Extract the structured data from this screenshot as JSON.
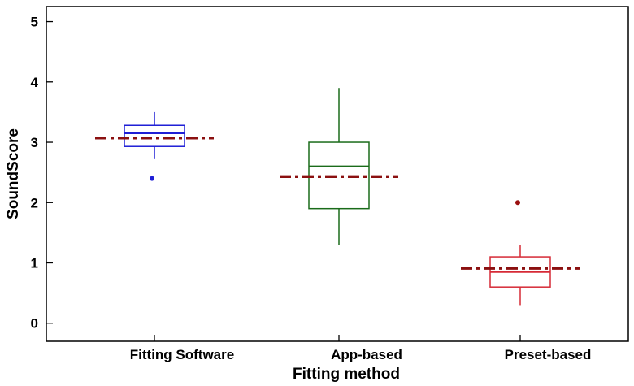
{
  "chart_data": {
    "type": "box",
    "xlabel": "Fitting method",
    "ylabel": "SoundScore",
    "ylim": [
      -0.3,
      5.25
    ],
    "yticks": [
      0,
      1,
      2,
      3,
      4,
      5
    ],
    "yticklabels": [
      "0",
      "1",
      "2",
      "3",
      "4",
      "5"
    ],
    "grid": false,
    "categories": [
      "Fitting Software",
      "App-based",
      "Preset-based"
    ],
    "boxes": [
      {
        "category": "Fitting Software",
        "color": "#1f1fd6",
        "whisker_low": 2.72,
        "q1": 2.93,
        "median": 3.15,
        "q3": 3.28,
        "whisker_high": 3.5,
        "mean": 3.07,
        "outliers": [
          2.4
        ]
      },
      {
        "category": "App-based",
        "color": "#1a6b1a",
        "whisker_low": 1.3,
        "q1": 1.9,
        "median": 2.6,
        "q3": 3.0,
        "whisker_high": 3.9,
        "mean": 2.43,
        "outliers": []
      },
      {
        "category": "Preset-based",
        "color": "#d62a36",
        "whisker_low": 0.3,
        "q1": 0.6,
        "median": 0.85,
        "q3": 1.1,
        "whisker_high": 1.3,
        "mean": 0.91,
        "outliers": [
          2.0
        ]
      }
    ],
    "mean_line_color": "#8b1010",
    "outlier_color_first": "#1f1fd6",
    "outlier_color_last": "#9b1010"
  }
}
